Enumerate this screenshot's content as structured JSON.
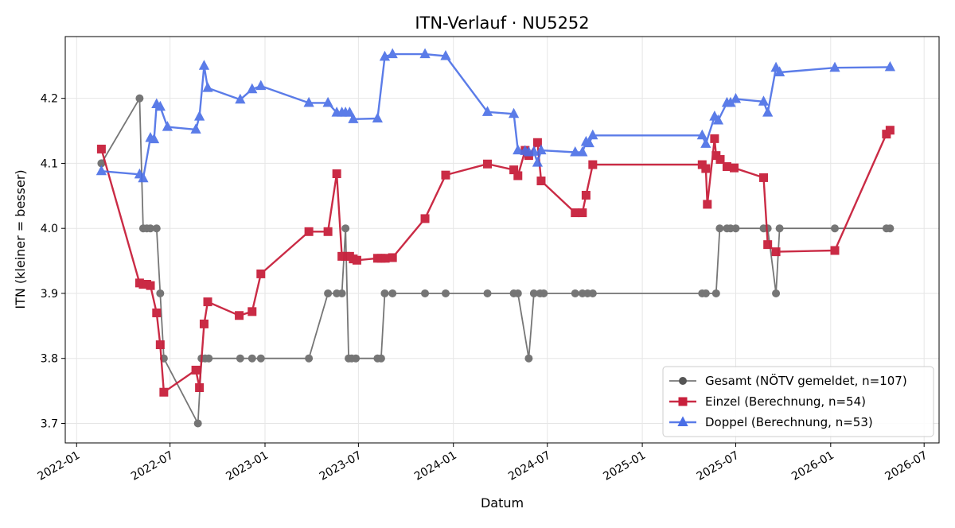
{
  "chart_data": {
    "type": "line",
    "title": "ITN-Verlauf · NU5252",
    "xlabel": "Datum",
    "ylabel": "ITN  (kleiner = besser)",
    "x_axis": "date",
    "xlim": [
      "2021-12-10",
      "2026-07-30"
    ],
    "ylim": [
      3.67,
      4.295
    ],
    "x_ticks": [
      "2022-01",
      "2022-07",
      "2023-01",
      "2023-07",
      "2024-01",
      "2024-07",
      "2025-01",
      "2025-07",
      "2026-01",
      "2026-07"
    ],
    "y_ticks": [
      "3.7",
      "3.8",
      "3.9",
      "4.0",
      "4.1",
      "4.2"
    ],
    "grid": true,
    "legend_position": "lower-right",
    "series": [
      {
        "name": "Gesamt (NÖTV gemeldet, n=107)",
        "color": "#555555",
        "marker": "circle",
        "points": [
          [
            "2022-02-18",
            4.1
          ],
          [
            "2022-05-03",
            4.2
          ],
          [
            "2022-05-10",
            4.0
          ],
          [
            "2022-05-17",
            4.0
          ],
          [
            "2022-05-24",
            4.0
          ],
          [
            "2022-06-05",
            4.0
          ],
          [
            "2022-06-12",
            3.9
          ],
          [
            "2022-06-19",
            3.8
          ],
          [
            "2022-08-24",
            3.7
          ],
          [
            "2022-08-31",
            3.8
          ],
          [
            "2022-09-07",
            3.8
          ],
          [
            "2022-09-14",
            3.8
          ],
          [
            "2022-11-14",
            3.8
          ],
          [
            "2022-12-07",
            3.8
          ],
          [
            "2022-12-24",
            3.8
          ],
          [
            "2023-03-27",
            3.8
          ],
          [
            "2023-05-03",
            3.9
          ],
          [
            "2023-05-20",
            3.9
          ],
          [
            "2023-05-30",
            3.9
          ],
          [
            "2023-06-06",
            4.0
          ],
          [
            "2023-06-12",
            3.8
          ],
          [
            "2023-06-18",
            3.8
          ],
          [
            "2023-06-26",
            3.8
          ],
          [
            "2023-08-07",
            3.8
          ],
          [
            "2023-08-14",
            3.8
          ],
          [
            "2023-08-21",
            3.9
          ],
          [
            "2023-09-05",
            3.9
          ],
          [
            "2023-11-07",
            3.9
          ],
          [
            "2023-12-17",
            3.9
          ],
          [
            "2024-03-07",
            3.9
          ],
          [
            "2024-04-27",
            3.9
          ],
          [
            "2024-05-05",
            3.9
          ],
          [
            "2024-05-26",
            3.8
          ],
          [
            "2024-06-05",
            3.9
          ],
          [
            "2024-06-17",
            3.9
          ],
          [
            "2024-06-24",
            3.9
          ],
          [
            "2024-08-24",
            3.9
          ],
          [
            "2024-09-07",
            3.9
          ],
          [
            "2024-09-17",
            3.9
          ],
          [
            "2024-09-27",
            3.9
          ],
          [
            "2025-04-27",
            3.9
          ],
          [
            "2025-05-04",
            3.9
          ],
          [
            "2025-05-24",
            3.9
          ],
          [
            "2025-05-31",
            4.0
          ],
          [
            "2025-06-14",
            4.0
          ],
          [
            "2025-06-21",
            4.0
          ],
          [
            "2025-07-01",
            4.0
          ],
          [
            "2025-08-24",
            4.0
          ],
          [
            "2025-09-01",
            4.0
          ],
          [
            "2025-09-17",
            3.9
          ],
          [
            "2025-09-24",
            4.0
          ],
          [
            "2026-01-09",
            4.0
          ],
          [
            "2026-04-19",
            4.0
          ],
          [
            "2026-04-26",
            4.0
          ]
        ]
      },
      {
        "name": "Einzel (Berechnung, n=54)",
        "color": "#c8203c",
        "marker": "square",
        "points": [
          [
            "2022-02-18",
            4.122
          ],
          [
            "2022-05-03",
            3.916
          ],
          [
            "2022-05-10",
            3.914
          ],
          [
            "2022-05-17",
            3.914
          ],
          [
            "2022-05-24",
            3.912
          ],
          [
            "2022-06-05",
            3.87
          ],
          [
            "2022-06-12",
            3.821
          ],
          [
            "2022-06-19",
            3.748
          ],
          [
            "2022-08-20",
            3.782
          ],
          [
            "2022-08-27",
            3.755
          ],
          [
            "2022-09-05",
            3.853
          ],
          [
            "2022-09-12",
            3.887
          ],
          [
            "2022-11-12",
            3.866
          ],
          [
            "2022-12-07",
            3.872
          ],
          [
            "2022-12-24",
            3.93
          ],
          [
            "2023-03-27",
            3.995
          ],
          [
            "2023-05-03",
            3.995
          ],
          [
            "2023-05-20",
            4.084
          ],
          [
            "2023-05-30",
            3.957
          ],
          [
            "2023-06-06",
            3.957
          ],
          [
            "2023-06-14",
            3.957
          ],
          [
            "2023-06-21",
            3.953
          ],
          [
            "2023-06-28",
            3.951
          ],
          [
            "2023-08-07",
            3.954
          ],
          [
            "2023-08-14",
            3.954
          ],
          [
            "2023-08-22",
            3.954
          ],
          [
            "2023-09-05",
            3.955
          ],
          [
            "2023-11-07",
            4.015
          ],
          [
            "2023-12-17",
            4.082
          ],
          [
            "2024-03-07",
            4.099
          ],
          [
            "2024-04-27",
            4.09
          ],
          [
            "2024-05-05",
            4.081
          ],
          [
            "2024-05-19",
            4.12
          ],
          [
            "2024-05-26",
            4.112
          ],
          [
            "2024-06-12",
            4.132
          ],
          [
            "2024-06-19",
            4.073
          ],
          [
            "2024-08-24",
            4.024
          ],
          [
            "2024-09-07",
            4.024
          ],
          [
            "2024-09-14",
            4.051
          ],
          [
            "2024-09-27",
            4.098
          ],
          [
            "2025-04-27",
            4.098
          ],
          [
            "2025-05-04",
            4.092
          ],
          [
            "2025-05-07",
            4.037
          ],
          [
            "2025-05-21",
            4.138
          ],
          [
            "2025-05-24",
            4.112
          ],
          [
            "2025-06-01",
            4.106
          ],
          [
            "2025-06-14",
            4.095
          ],
          [
            "2025-06-28",
            4.093
          ],
          [
            "2025-08-24",
            4.078
          ],
          [
            "2025-09-01",
            3.975
          ],
          [
            "2025-09-17",
            3.964
          ],
          [
            "2026-01-09",
            3.966
          ],
          [
            "2026-04-19",
            4.145
          ],
          [
            "2026-04-26",
            4.151
          ]
        ]
      },
      {
        "name": "Doppel (Berechnung, n=53)",
        "color": "#4a6ee6",
        "marker": "triangle",
        "points": [
          [
            "2022-02-18",
            4.088
          ],
          [
            "2022-05-03",
            4.083
          ],
          [
            "2022-05-10",
            4.077
          ],
          [
            "2022-05-24",
            4.139
          ],
          [
            "2022-05-31",
            4.137
          ],
          [
            "2022-06-05",
            4.191
          ],
          [
            "2022-06-12",
            4.187
          ],
          [
            "2022-06-26",
            4.156
          ],
          [
            "2022-08-20",
            4.152
          ],
          [
            "2022-08-27",
            4.172
          ],
          [
            "2022-09-05",
            4.25
          ],
          [
            "2022-09-12",
            4.216
          ],
          [
            "2022-11-14",
            4.198
          ],
          [
            "2022-12-07",
            4.214
          ],
          [
            "2022-12-24",
            4.219
          ],
          [
            "2023-03-27",
            4.193
          ],
          [
            "2023-05-03",
            4.193
          ],
          [
            "2023-05-20",
            4.178
          ],
          [
            "2023-05-30",
            4.178
          ],
          [
            "2023-06-06",
            4.178
          ],
          [
            "2023-06-14",
            4.178
          ],
          [
            "2023-06-21",
            4.168
          ],
          [
            "2023-08-07",
            4.169
          ],
          [
            "2023-08-21",
            4.264
          ],
          [
            "2023-09-05",
            4.268
          ],
          [
            "2023-11-07",
            4.268
          ],
          [
            "2023-12-17",
            4.265
          ],
          [
            "2024-03-07",
            4.179
          ],
          [
            "2024-04-27",
            4.176
          ],
          [
            "2024-05-05",
            4.12
          ],
          [
            "2024-05-19",
            4.119
          ],
          [
            "2024-05-26",
            4.117
          ],
          [
            "2024-06-05",
            4.118
          ],
          [
            "2024-06-12",
            4.101
          ],
          [
            "2024-06-19",
            4.12
          ],
          [
            "2024-08-24",
            4.117
          ],
          [
            "2024-09-07",
            4.117
          ],
          [
            "2024-09-14",
            4.133
          ],
          [
            "2024-09-20",
            4.131
          ],
          [
            "2024-09-27",
            4.143
          ],
          [
            "2025-04-27",
            4.143
          ],
          [
            "2025-05-04",
            4.13
          ],
          [
            "2025-05-21",
            4.172
          ],
          [
            "2025-05-28",
            4.166
          ],
          [
            "2025-06-14",
            4.193
          ],
          [
            "2025-06-21",
            4.193
          ],
          [
            "2025-07-01",
            4.199
          ],
          [
            "2025-08-24",
            4.195
          ],
          [
            "2025-09-01",
            4.178
          ],
          [
            "2025-09-17",
            4.247
          ],
          [
            "2025-09-24",
            4.24
          ],
          [
            "2026-01-09",
            4.247
          ],
          [
            "2026-04-26",
            4.248
          ]
        ]
      }
    ]
  }
}
